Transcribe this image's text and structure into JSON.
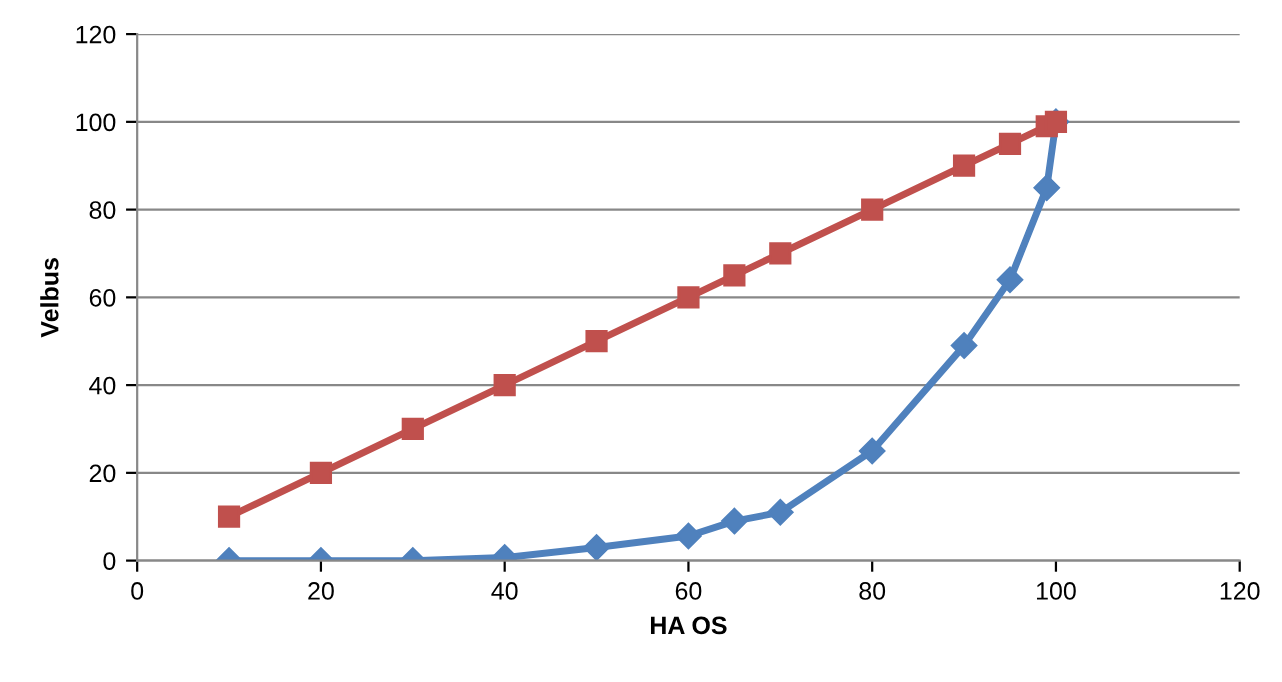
{
  "chart_data": {
    "type": "line",
    "xlabel": "HA OS",
    "ylabel": "Velbus",
    "xlim": [
      0,
      120
    ],
    "xticks": [
      0,
      20,
      40,
      60,
      80,
      100,
      120
    ],
    "ylim": [
      0,
      120
    ],
    "yticks": [
      0,
      20,
      40,
      60,
      80,
      100,
      120
    ],
    "grid": "y",
    "series": [
      {
        "color": "#4f81bd",
        "marker": "diamond",
        "x": [
          10,
          20,
          30,
          40,
          50,
          60,
          65,
          70,
          80,
          90,
          95,
          99,
          100
        ],
        "values": [
          0,
          0,
          0,
          0.7,
          3,
          5.6,
          9,
          11,
          25,
          49,
          64,
          85,
          100
        ]
      },
      {
        "color": "#c0504d",
        "marker": "square",
        "x": [
          10,
          20,
          30,
          40,
          50,
          60,
          65,
          70,
          80,
          90,
          95,
          99,
          100
        ],
        "values": [
          10,
          20,
          30,
          40,
          50,
          60,
          65,
          70,
          80,
          90,
          95,
          99,
          100
        ]
      }
    ]
  }
}
